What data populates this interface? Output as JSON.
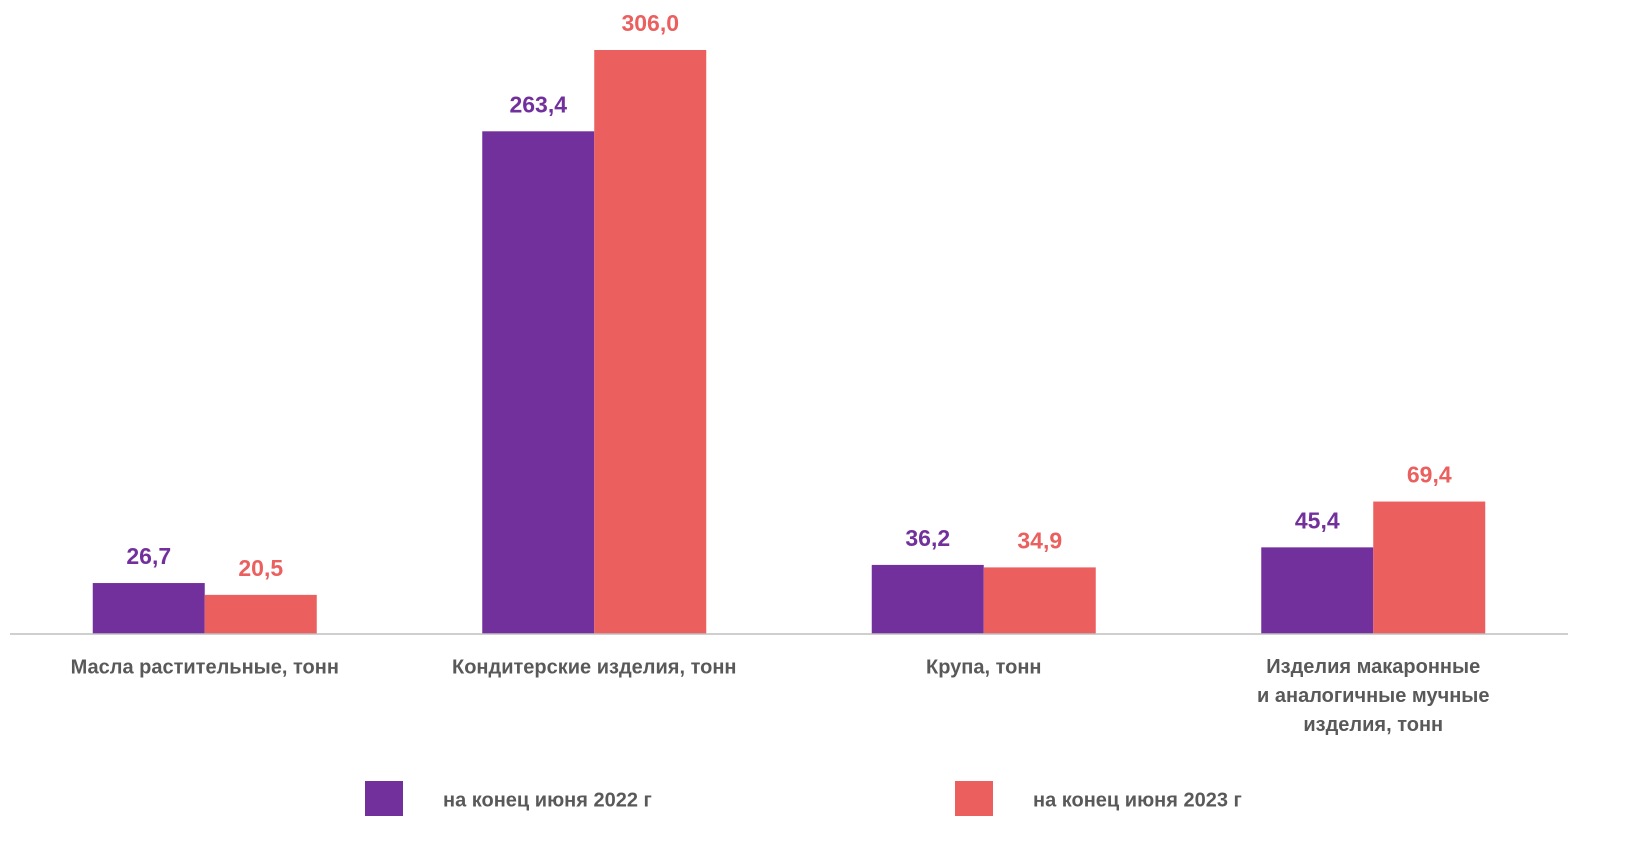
{
  "chart_data": {
    "type": "bar",
    "categories": [
      "Масла растительные, тонн",
      "Кондитерские изделия, тонн",
      "Крупа, тонн",
      "Изделия макаронные\nи аналогичные мучные\nизделия, тонн"
    ],
    "series": [
      {
        "name": "на конец июня 2022 г",
        "color": "#72309c",
        "values": [
          26.7,
          263.4,
          36.2,
          45.4
        ],
        "value_labels": [
          "26,7",
          "263,4",
          "36,2",
          "45,4"
        ]
      },
      {
        "name": "на конец июня 2023 г",
        "color": "#eb5f5f",
        "values": [
          20.5,
          306.0,
          34.9,
          69.4
        ],
        "value_labels": [
          "20,5",
          "306,0",
          "34,9",
          "69,4"
        ]
      }
    ]
  }
}
